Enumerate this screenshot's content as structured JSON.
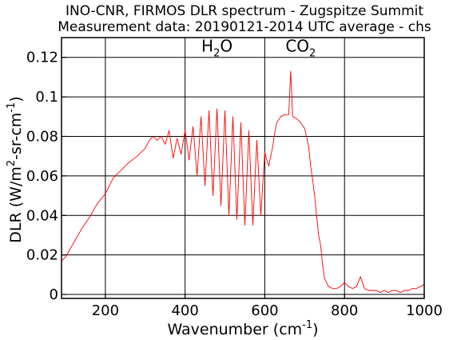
{
  "chart_data": {
    "type": "line",
    "title_lines": [
      "INO-CNR, FIRMOS DLR spectrum - Zugspitze Summit",
      "Measurement data: 20190121-2014 UTC average - chs"
    ],
    "xlabel": {
      "main": "Wavenumber (cm",
      "sup": "-1",
      "close": ")"
    },
    "ylabel": {
      "pre": "DLR (W/m",
      "sup1": "2",
      "mid": "-sr-cm",
      "sup2": "-1",
      "close": ")"
    },
    "xlim": [
      90,
      1000
    ],
    "ylim": [
      -0.002,
      0.13
    ],
    "x_ticks": [
      200,
      400,
      600,
      800,
      1000
    ],
    "x_tick_labels": [
      "200",
      "400",
      "600",
      "800",
      "1000"
    ],
    "y_ticks": [
      0,
      0.02,
      0.04,
      0.06,
      0.08,
      0.1,
      0.12
    ],
    "y_tick_labels": [
      "0",
      "0.02",
      "0.04",
      "0.06",
      "0.08",
      "0.1",
      "0.12"
    ],
    "grid": true,
    "line_color": "#ff0000",
    "annotations": [
      {
        "base": "H",
        "sub": "2",
        "tail": "O",
        "x": 480,
        "y": 0.123
      },
      {
        "base": "CO",
        "sub": "2",
        "tail": "",
        "x": 690,
        "y": 0.123
      }
    ],
    "series": [
      {
        "color": "#ff0000",
        "x": [
          90,
          100,
          120,
          140,
          160,
          180,
          200,
          220,
          240,
          260,
          280,
          300,
          310,
          320,
          330,
          340,
          350,
          360,
          370,
          380,
          390,
          400,
          410,
          420,
          430,
          440,
          450,
          460,
          470,
          480,
          490,
          500,
          510,
          520,
          530,
          540,
          550,
          560,
          570,
          580,
          590,
          600,
          605,
          610,
          615,
          620,
          625,
          630,
          640,
          650,
          660,
          665,
          670,
          680,
          690,
          700,
          710,
          715,
          720,
          725,
          730,
          735,
          740,
          745,
          750,
          760,
          770,
          780,
          790,
          800,
          810,
          820,
          830,
          840,
          850,
          860,
          870,
          880,
          890,
          900,
          910,
          920,
          930,
          940,
          950,
          960,
          970,
          980,
          990,
          1000
        ],
        "y": [
          0.017,
          0.019,
          0.026,
          0.033,
          0.039,
          0.046,
          0.051,
          0.059,
          0.063,
          0.067,
          0.07,
          0.074,
          0.078,
          0.08,
          0.078,
          0.08,
          0.076,
          0.083,
          0.069,
          0.079,
          0.071,
          0.083,
          0.068,
          0.085,
          0.06,
          0.09,
          0.055,
          0.093,
          0.05,
          0.094,
          0.045,
          0.093,
          0.04,
          0.09,
          0.038,
          0.087,
          0.035,
          0.083,
          0.035,
          0.078,
          0.04,
          0.072,
          0.068,
          0.065,
          0.07,
          0.075,
          0.082,
          0.087,
          0.09,
          0.091,
          0.091,
          0.113,
          0.09,
          0.089,
          0.087,
          0.084,
          0.075,
          0.065,
          0.058,
          0.05,
          0.04,
          0.03,
          0.025,
          0.015,
          0.008,
          0.004,
          0.003,
          0.003,
          0.004,
          0.006,
          0.004,
          0.003,
          0.004,
          0.009,
          0.003,
          0.002,
          0.002,
          0.002,
          0.001,
          0.002,
          0.001,
          0.002,
          0.002,
          0.001,
          0.002,
          0.002,
          0.003,
          0.003,
          0.004,
          0.005
        ]
      }
    ]
  }
}
